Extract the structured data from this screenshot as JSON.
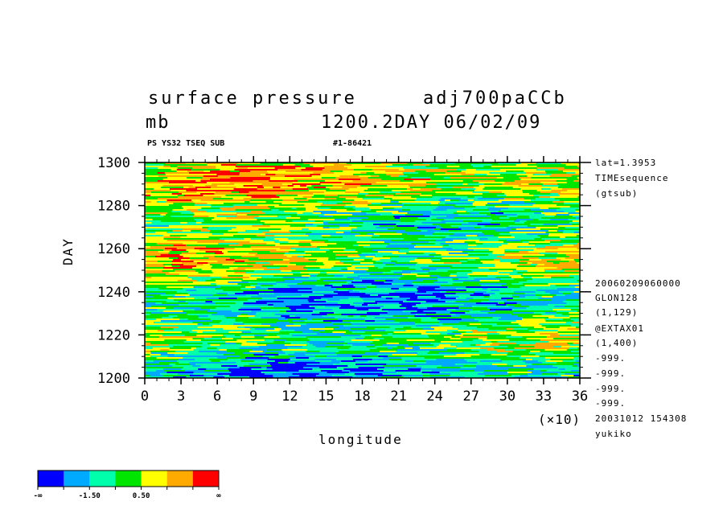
{
  "chart_data": {
    "type": "heatmap",
    "title": "surface pressure",
    "title_right": "adj700paCCb",
    "units": "mb",
    "subtitle_right": "1200.2DAY 06/02/09",
    "info_left": "PS YS32 TSEQ SUB",
    "info_mid": "#1-86421",
    "xlabel": "longitude",
    "x_scale_note": "(×10)",
    "ylabel": "DAY",
    "xlim": [
      0,
      36
    ],
    "ylim": [
      1200,
      1300
    ],
    "x_ticks": [
      "0",
      "3",
      "6",
      "9",
      "12",
      "15",
      "18",
      "21",
      "24",
      "27",
      "30",
      "33",
      "36"
    ],
    "y_ticks": [
      "1200",
      "1220",
      "1240",
      "1260",
      "1280",
      "1300"
    ],
    "right_info_top": [
      "lat=1.3953",
      "TIMEsequence",
      "(gtsub)"
    ],
    "right_info_bottom": [
      "20060209060000",
      "GLON128",
      "(1,129)",
      "@EXTAX01",
      "(1,400)",
      "-999.",
      "-999.",
      "-999.",
      "-999.",
      "20031012 154308",
      "yukiko"
    ],
    "colorbar": {
      "colors": [
        "#0000ff",
        "#00aaff",
        "#00ffaa",
        "#00e600",
        "#ffff00",
        "#ffaa00",
        "#ff0000"
      ],
      "labels": [
        "-∞",
        "-1.50",
        "0.50",
        "∞"
      ]
    }
  }
}
